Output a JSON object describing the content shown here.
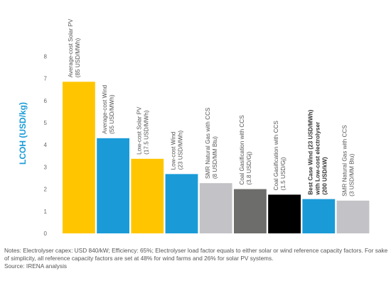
{
  "chart_data": {
    "type": "bar",
    "ylabel": "LCOH (USD/kg)",
    "ylim": [
      0,
      8
    ],
    "yticks": [
      "0",
      "1",
      "2",
      "3",
      "4",
      "5",
      "6",
      "7",
      "8"
    ],
    "grid": false,
    "legend": "none",
    "categories": [
      [
        "Average-cost Solar PV",
        "(85 USD/MWh)"
      ],
      [
        "Average-cost Wind",
        "(55 USD/MWh)"
      ],
      [
        "Low-cost Solar PV",
        "(17.5 USD/MWh)"
      ],
      [
        "Low-cost Wind",
        "(23 USD/MWh)"
      ],
      [
        "SMR Natural Gas with CCS",
        "(8 USD/MM Btu)"
      ],
      [
        "Coal Gasification with CCS",
        "(3.8 USD/Gj)"
      ],
      [
        "Coal Gasification with CCS",
        "(1.5 USD/Gj)"
      ],
      [
        "Best Case Wind (23 USD/MWh)",
        "with Low-cost electrolyser",
        "(200 USD/kW)"
      ],
      [
        "SMR Natural Gas with CCS",
        "(3 USD/MM Btu)"
      ]
    ],
    "bold_labels": [
      false,
      false,
      false,
      false,
      false,
      false,
      false,
      true,
      false
    ],
    "values": [
      6.85,
      4.3,
      3.37,
      2.68,
      2.27,
      2.0,
      1.75,
      1.55,
      1.48
    ],
    "colors": [
      "#ffc600",
      "#1a9bd7",
      "#ffc600",
      "#1a9bd7",
      "#c3c3c7",
      "#6d6d6b",
      "#000000",
      "#1a9bd7",
      "#c3c3c7"
    ]
  },
  "notes": {
    "line1": "Notes: Electrolyser capex: USD 840/kW; Efficiency: 65%; Electrolyser load factor equals to either solar or wind reference capacity factors. For sake of simplicity, all reference capacity factors are set at 48% for wind farms and 26% for solar PV systems.",
    "line2": "Source: IRENA analysis"
  }
}
